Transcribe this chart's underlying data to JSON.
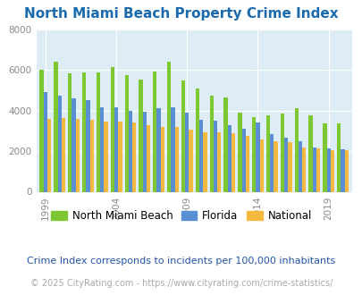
{
  "title": "North Miami Beach Property Crime Index",
  "subtitle": "Crime Index corresponds to incidents per 100,000 inhabitants",
  "footer": "© 2025 CityRating.com - https://www.cityrating.com/crime-statistics/",
  "years": [
    1999,
    2000,
    2001,
    2002,
    2003,
    2004,
    2005,
    2006,
    2007,
    2008,
    2009,
    2010,
    2011,
    2012,
    2013,
    2014,
    2015,
    2016,
    2017,
    2018,
    2019,
    2020
  ],
  "nmb": [
    6000,
    6400,
    5850,
    5900,
    5900,
    6150,
    5750,
    5550,
    5950,
    6400,
    5500,
    5100,
    4750,
    4650,
    3900,
    3700,
    3750,
    3850,
    4100,
    3750,
    3350,
    3350
  ],
  "florida": [
    4900,
    4750,
    4600,
    4500,
    4150,
    4150,
    4000,
    3950,
    4100,
    4150,
    3900,
    3550,
    3500,
    3300,
    3100,
    3400,
    2850,
    2650,
    2500,
    2200,
    2150,
    2100
  ],
  "national": [
    3600,
    3650,
    3600,
    3550,
    3450,
    3450,
    3400,
    3300,
    3200,
    3200,
    3050,
    2950,
    2950,
    2900,
    2750,
    2600,
    2500,
    2450,
    2200,
    2150,
    2050,
    2050
  ],
  "nmb_color": "#7dc832",
  "florida_color": "#5b8fd4",
  "national_color": "#f5b942",
  "plot_bg": "#deedf5",
  "title_color": "#1a6aad",
  "subtitle_color": "#2255aa",
  "footer_color": "#aaaaaa",
  "ylim": [
    0,
    8000
  ],
  "yticks": [
    0,
    2000,
    4000,
    6000,
    8000
  ],
  "xtick_years": [
    1999,
    2004,
    2009,
    2014,
    2019
  ],
  "bar_width": 0.27,
  "legend_labels": [
    "North Miami Beach",
    "Florida",
    "National"
  ],
  "title_fontsize": 11,
  "subtitle_fontsize": 8,
  "footer_fontsize": 7,
  "tick_fontsize": 7.5,
  "legend_fontsize": 8.5
}
